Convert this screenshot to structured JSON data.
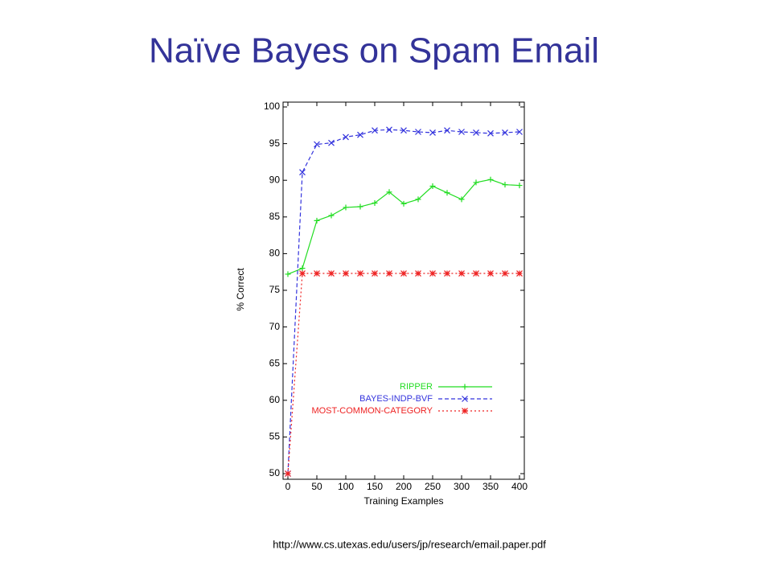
{
  "chart_data": {
    "type": "line",
    "title": "Naïve Bayes on Spam Email",
    "xlabel": "Training Examples",
    "ylabel": "% Correct",
    "source": "http://www.cs.utexas.edu/users/jp/research/email.paper.pdf",
    "x": [
      0,
      25,
      50,
      75,
      100,
      125,
      150,
      175,
      200,
      225,
      250,
      275,
      300,
      325,
      350,
      375,
      400
    ],
    "series": [
      {
        "name": "RIPPER",
        "color": "#22dd22",
        "marker": "plus",
        "dash": "none",
        "values": [
          77.2,
          78.0,
          84.5,
          85.2,
          86.3,
          86.4,
          86.9,
          88.4,
          86.8,
          87.4,
          89.2,
          88.3,
          87.4,
          89.7,
          90.1,
          89.4,
          89.3
        ]
      },
      {
        "name": "BAYES-INDP-BVF",
        "color": "#3333dd",
        "marker": "cross",
        "dash": "5,3",
        "values": [
          50,
          91.1,
          94.9,
          95.1,
          95.9,
          96.2,
          96.8,
          96.9,
          96.8,
          96.6,
          96.5,
          96.8,
          96.6,
          96.5,
          96.4,
          96.5,
          96.6
        ]
      },
      {
        "name": "MOST-COMMON-CATEGORY",
        "color": "#ee2222",
        "marker": "star",
        "dash": "2,3",
        "values": [
          50,
          77.3,
          77.3,
          77.3,
          77.3,
          77.3,
          77.3,
          77.3,
          77.3,
          77.3,
          77.3,
          77.3,
          77.3,
          77.3,
          77.3,
          77.3,
          77.3
        ]
      }
    ],
    "xlim": [
      0,
      400
    ],
    "ylim": [
      50,
      100
    ],
    "xticks": [
      0,
      50,
      100,
      150,
      200,
      250,
      300,
      350,
      400
    ],
    "yticks": [
      50,
      55,
      60,
      65,
      70,
      75,
      80,
      85,
      90,
      95,
      100
    ]
  }
}
